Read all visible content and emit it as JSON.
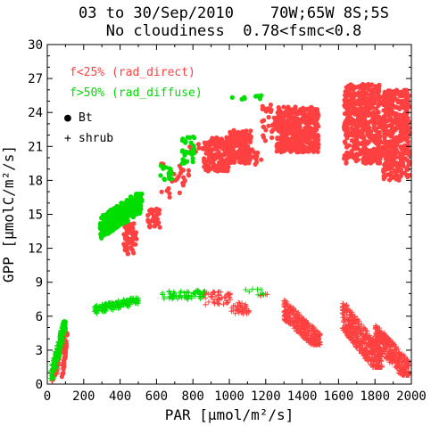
{
  "chart_data": {
    "type": "scatter",
    "title_line1": "03 to 30/Sep/2010    70W;65W 8S;5S",
    "title_line2": "No cloudiness  0.78<fsmc<0.8",
    "xlabel": "PAR [μmol/m²/s]",
    "ylabel": "GPP [μmolC/m²/s]",
    "xlim": [
      0,
      2000
    ],
    "ylim": [
      0,
      30
    ],
    "xticks": [
      0,
      200,
      400,
      600,
      800,
      1000,
      1200,
      1400,
      1600,
      1800,
      2000
    ],
    "yticks": [
      0,
      3,
      6,
      9,
      12,
      15,
      18,
      21,
      24,
      27,
      30
    ],
    "grid": false,
    "legend": {
      "position": "top-left",
      "entries": [
        {
          "label": "f<25% (rad_direct)",
          "color": "#ff4040"
        },
        {
          "label": "f>50% (rad_diffuse)",
          "color": "#00dd00"
        },
        {
          "symbol": "●",
          "label": "Bt"
        },
        {
          "symbol": "+",
          "label": "shrub"
        }
      ]
    },
    "series": [
      {
        "name": "f<25% (rad_direct)",
        "marker": "dot",
        "color": "#ff4040",
        "clusters": [
          {
            "x": [
              80,
              110
            ],
            "y": [
              0.5,
              4.5
            ],
            "n": 40,
            "kind": "diag"
          },
          {
            "x": [
              420,
              490
            ],
            "y": [
              11.5,
              14.2
            ],
            "n": 60
          },
          {
            "x": [
              550,
              620
            ],
            "y": [
              13.8,
              15.5
            ],
            "n": 40
          },
          {
            "x": [
              620,
              780
            ],
            "y": [
              16.5,
              19.5
            ],
            "n": 25
          },
          {
            "x": [
              780,
              860
            ],
            "y": [
              20.5,
              21.2
            ],
            "n": 8
          },
          {
            "x": [
              860,
              1000
            ],
            "y": [
              18.8,
              21.8
            ],
            "n": 160
          },
          {
            "x": [
              1000,
              1120
            ],
            "y": [
              19.5,
              22.5
            ],
            "n": 160
          },
          {
            "x": [
              1110,
              1180
            ],
            "y": [
              19.3,
              20.8
            ],
            "n": 10
          },
          {
            "x": [
              1180,
              1260
            ],
            "y": [
              21.5,
              24.8
            ],
            "n": 30
          },
          {
            "x": [
              1260,
              1490
            ],
            "y": [
              20.5,
              24.5
            ],
            "n": 480
          },
          {
            "x": [
              1630,
              1830
            ],
            "y": [
              19.5,
              26.5
            ],
            "n": 480
          },
          {
            "x": [
              1840,
              1990
            ],
            "y": [
              18.0,
              26.0
            ],
            "n": 420
          }
        ]
      },
      {
        "name": "f>50% (rad_diffuse)",
        "marker": "dot",
        "color": "#00dd00",
        "clusters": [
          {
            "x": [
              25,
              100
            ],
            "y": [
              0.5,
              5.5
            ],
            "n": 90,
            "kind": "diag"
          },
          {
            "x": [
              290,
              520
            ],
            "y": [
              12.8,
              16.8
            ],
            "n": 300,
            "kind": "band"
          },
          {
            "x": [
              620,
              690
            ],
            "y": [
              18.0,
              19.5
            ],
            "n": 15
          },
          {
            "x": [
              740,
              810
            ],
            "y": [
              19.5,
              22.0
            ],
            "n": 30
          },
          {
            "x": [
              1010,
              1130
            ],
            "y": [
              24.5,
              25.5
            ],
            "n": 5
          },
          {
            "x": [
              1130,
              1180
            ],
            "y": [
              25.2,
              25.6
            ],
            "n": 4
          }
        ]
      },
      {
        "name": "f<25% (rad_direct)",
        "marker": "plus",
        "color": "#ff4040",
        "clusters": [
          {
            "x": [
              25,
              110
            ],
            "y": [
              0.3,
              4.5
            ],
            "n": 60,
            "kind": "diag"
          },
          {
            "x": [
              860,
              1010
            ],
            "y": [
              7.0,
              8.2
            ],
            "n": 50
          },
          {
            "x": [
              1010,
              1110
            ],
            "y": [
              6.2,
              7.2
            ],
            "n": 40
          },
          {
            "x": [
              1160,
              1220
            ],
            "y": [
              7.8,
              8.0
            ],
            "n": 5
          },
          {
            "x": [
              1300,
              1500
            ],
            "y": [
              3.5,
              7.5
            ],
            "n": 300,
            "kind": "fall"
          },
          {
            "x": [
              1620,
              1840
            ],
            "y": [
              1.5,
              7.5
            ],
            "n": 420,
            "kind": "fall"
          },
          {
            "x": [
              1800,
              1990
            ],
            "y": [
              0.8,
              5.5
            ],
            "n": 320,
            "kind": "fall"
          }
        ]
      },
      {
        "name": "f>50% (rad_diffuse)",
        "marker": "plus",
        "color": "#00dd00",
        "clusters": [
          {
            "x": [
              20,
              100
            ],
            "y": [
              0.5,
              5.5
            ],
            "n": 120,
            "kind": "diag"
          },
          {
            "x": [
              260,
              500
            ],
            "y": [
              6.2,
              7.6
            ],
            "n": 160,
            "kind": "band"
          },
          {
            "x": [
              620,
              860
            ],
            "y": [
              7.5,
              8.3
            ],
            "n": 60
          },
          {
            "x": [
              1050,
              1200
            ],
            "y": [
              7.9,
              8.4
            ],
            "n": 8
          }
        ]
      }
    ]
  }
}
